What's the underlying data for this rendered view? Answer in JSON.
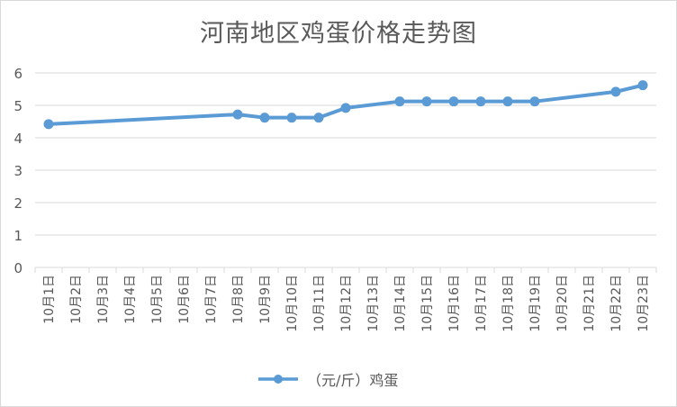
{
  "chart_data": {
    "type": "line",
    "title": "河南地区鸡蛋价格走势图",
    "categories": [
      "10月1日",
      "10月2日",
      "10月3日",
      "10月4日",
      "10月5日",
      "10月6日",
      "10月7日",
      "10月8日",
      "10月9日",
      "10月10日",
      "10月11日",
      "10月12日",
      "10月13日",
      "10月14日",
      "10月15日",
      "10月16日",
      "10月17日",
      "10月18日",
      "10月19日",
      "10月20日",
      "10月21日",
      "10月22日",
      "10月23日"
    ],
    "series": [
      {
        "name": "（元/斤）鸡蛋",
        "values": [
          4.42,
          null,
          null,
          null,
          null,
          null,
          null,
          4.72,
          4.62,
          4.62,
          4.62,
          4.92,
          null,
          5.12,
          5.12,
          5.12,
          5.12,
          5.12,
          5.12,
          null,
          null,
          5.42,
          5.62
        ]
      }
    ],
    "ylim": [
      0,
      6
    ],
    "yticks": [
      0,
      1,
      2,
      3,
      4,
      5,
      6
    ],
    "grid": true,
    "legend": "bottom",
    "colors": {
      "series": "#5b9bd5",
      "grid": "#d9d9d9",
      "text": "#595959"
    }
  }
}
